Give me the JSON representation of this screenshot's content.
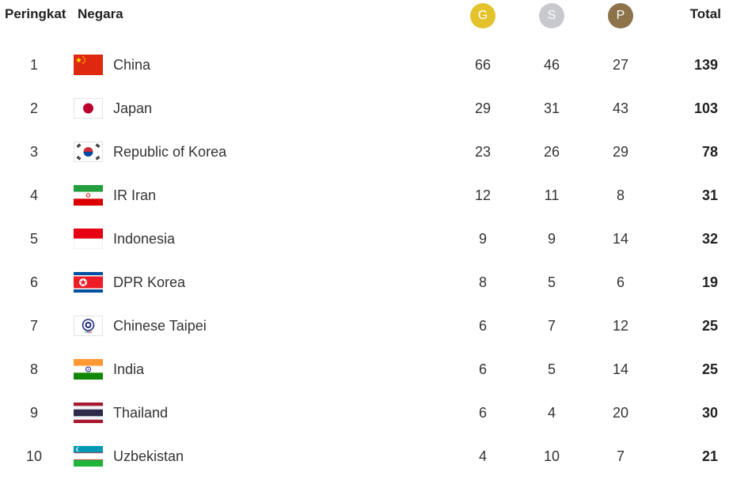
{
  "header": {
    "rank_label": "Peringkat",
    "country_label": "Negara",
    "gold": {
      "label": "G",
      "color": "#E3C22B"
    },
    "silver": {
      "label": "S",
      "color": "#C8C9CF"
    },
    "bronze": {
      "label": "P",
      "color": "#8C7349"
    },
    "total_label": "Total"
  },
  "rows": [
    {
      "rank": "1",
      "flag_icon": "china-flag-icon",
      "country": "China",
      "gold": "66",
      "silver": "46",
      "bronze": "27",
      "total": "139"
    },
    {
      "rank": "2",
      "flag_icon": "japan-flag-icon",
      "country": "Japan",
      "gold": "29",
      "silver": "31",
      "bronze": "43",
      "total": "103"
    },
    {
      "rank": "3",
      "flag_icon": "korea-flag-icon",
      "country": "Republic of Korea",
      "gold": "23",
      "silver": "26",
      "bronze": "29",
      "total": "78"
    },
    {
      "rank": "4",
      "flag_icon": "iran-flag-icon",
      "country": "IR Iran",
      "gold": "12",
      "silver": "11",
      "bronze": "8",
      "total": "31"
    },
    {
      "rank": "5",
      "flag_icon": "indonesia-flag-icon",
      "country": "Indonesia",
      "gold": "9",
      "silver": "9",
      "bronze": "14",
      "total": "32"
    },
    {
      "rank": "6",
      "flag_icon": "dpr-korea-flag-icon",
      "country": "DPR Korea",
      "gold": "8",
      "silver": "5",
      "bronze": "6",
      "total": "19"
    },
    {
      "rank": "7",
      "flag_icon": "chinese-taipei-flag-icon",
      "country": "Chinese Taipei",
      "gold": "6",
      "silver": "7",
      "bronze": "12",
      "total": "25"
    },
    {
      "rank": "8",
      "flag_icon": "india-flag-icon",
      "country": "India",
      "gold": "6",
      "silver": "5",
      "bronze": "14",
      "total": "25"
    },
    {
      "rank": "9",
      "flag_icon": "thailand-flag-icon",
      "country": "Thailand",
      "gold": "6",
      "silver": "4",
      "bronze": "20",
      "total": "30"
    },
    {
      "rank": "10",
      "flag_icon": "uzbekistan-flag-icon",
      "country": "Uzbekistan",
      "gold": "4",
      "silver": "10",
      "bronze": "7",
      "total": "21"
    }
  ]
}
